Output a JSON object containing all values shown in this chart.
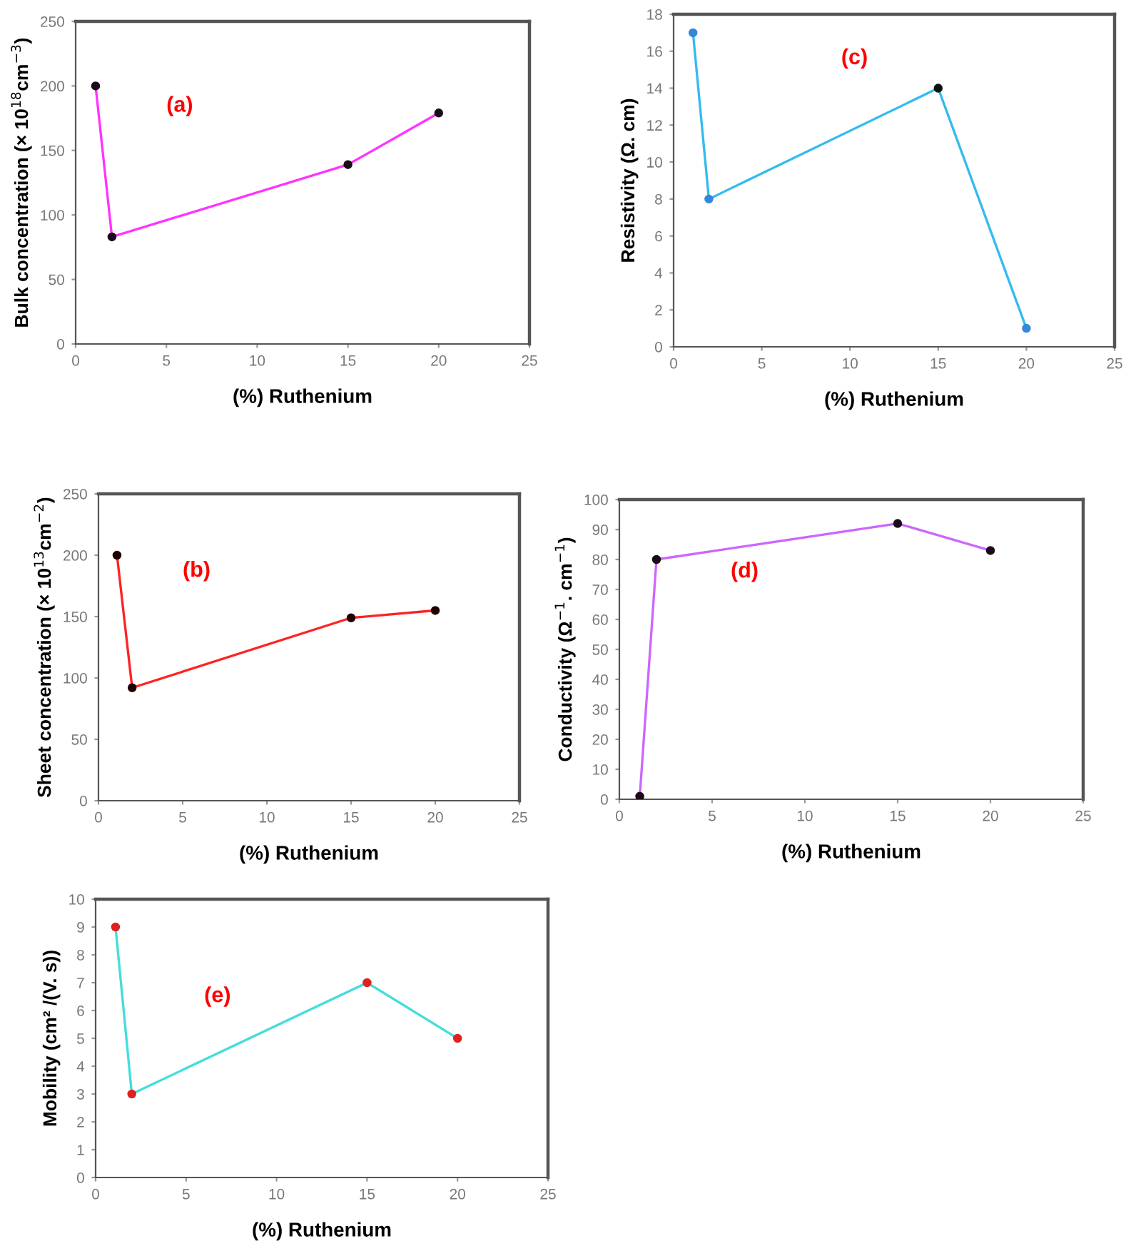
{
  "chart_data": [
    {
      "type": "line",
      "xlabel": "(%) Ruthenium",
      "ylabel": "Bulk concentration (× 10$^{18}$cm$^{−3}$)",
      "annotations": [
        "(a)"
      ],
      "xlim": [
        0,
        25
      ],
      "xticks": [
        0,
        5,
        10,
        15,
        20,
        25
      ],
      "ylim": [
        0,
        250
      ],
      "yticks": [
        0,
        50,
        100,
        150,
        200,
        250
      ],
      "marker": "circle",
      "grid": false,
      "series": [
        {
          "x": [
            1.1,
            2,
            15,
            20
          ],
          "values": [
            200,
            83,
            139,
            179
          ],
          "color": "#ff33ff",
          "colors": [
            "#1a0a1a",
            "#1a0a1a",
            "#1a0a1a",
            "#1a0a1a"
          ]
        }
      ]
    },
    {
      "type": "line",
      "xlabel": "(%) Ruthenium",
      "ylabel": "Resistivity (Ω. cm)",
      "annotations": [
        "(c)"
      ],
      "xlim": [
        0,
        25
      ],
      "xticks": [
        0,
        5,
        10,
        15,
        20,
        25
      ],
      "ylim": [
        0,
        18
      ],
      "yticks": [
        0,
        2,
        4,
        6,
        8,
        10,
        12,
        14,
        16,
        18
      ],
      "marker": "circle",
      "grid": false,
      "series": [
        {
          "x": [
            1.1,
            2,
            15,
            20
          ],
          "values": [
            17,
            8,
            14,
            1
          ],
          "color": "#33bbee",
          "colors": [
            "#3388dd",
            "#3388dd",
            "#111111",
            "#3388dd"
          ]
        }
      ]
    },
    {
      "type": "line",
      "xlabel": "(%) Ruthenium",
      "ylabel": "Sheet concentration (× 10$^{13}$cm$^{−2}$)",
      "annotations": [
        "(b)"
      ],
      "xlim": [
        0,
        25
      ],
      "xticks": [
        0,
        5,
        10,
        15,
        20,
        25
      ],
      "ylim": [
        0,
        250
      ],
      "yticks": [
        0,
        50,
        100,
        150,
        200,
        250
      ],
      "marker": "circle",
      "grid": false,
      "series": [
        {
          "x": [
            1.1,
            2,
            15,
            20
          ],
          "values": [
            200,
            92,
            149,
            155
          ],
          "color": "#ff2222",
          "colors": [
            "#220000",
            "#220000",
            "#220000",
            "#220000"
          ]
        }
      ]
    },
    {
      "type": "line",
      "xlabel": "(%) Ruthenium",
      "ylabel": "Conductivity (Ω$^{−1}$. cm$^{−1}$)",
      "annotations": [
        "(d)"
      ],
      "xlim": [
        0,
        25
      ],
      "xticks": [
        0,
        5,
        10,
        15,
        20,
        25
      ],
      "ylim": [
        0,
        100
      ],
      "yticks": [
        0,
        10,
        20,
        30,
        40,
        50,
        60,
        70,
        80,
        90,
        100
      ],
      "marker": "circle",
      "grid": false,
      "series": [
        {
          "x": [
            1.1,
            2,
            15,
            20
          ],
          "values": [
            1,
            80,
            92,
            83
          ],
          "color": "#cc66ff",
          "colors": [
            "#1a0a1a",
            "#1a0a1a",
            "#1a0a1a",
            "#1a0a1a"
          ]
        }
      ]
    },
    {
      "type": "line",
      "xlabel": "(%) Ruthenium",
      "ylabel": "Mobility (cm² /(V. s))",
      "annotations": [
        "(e)"
      ],
      "xlim": [
        0,
        25
      ],
      "xticks": [
        0,
        5,
        10,
        15,
        20,
        25
      ],
      "ylim": [
        0,
        10
      ],
      "yticks": [
        0,
        1,
        2,
        3,
        4,
        5,
        6,
        7,
        8,
        9,
        10
      ],
      "marker": "circle",
      "grid": false,
      "series": [
        {
          "x": [
            1.1,
            2,
            15,
            20
          ],
          "values": [
            9,
            3,
            7,
            5
          ],
          "color": "#44dddd",
          "colors": [
            "#dd2222",
            "#dd2222",
            "#dd2222",
            "#dd2222"
          ]
        }
      ]
    }
  ]
}
